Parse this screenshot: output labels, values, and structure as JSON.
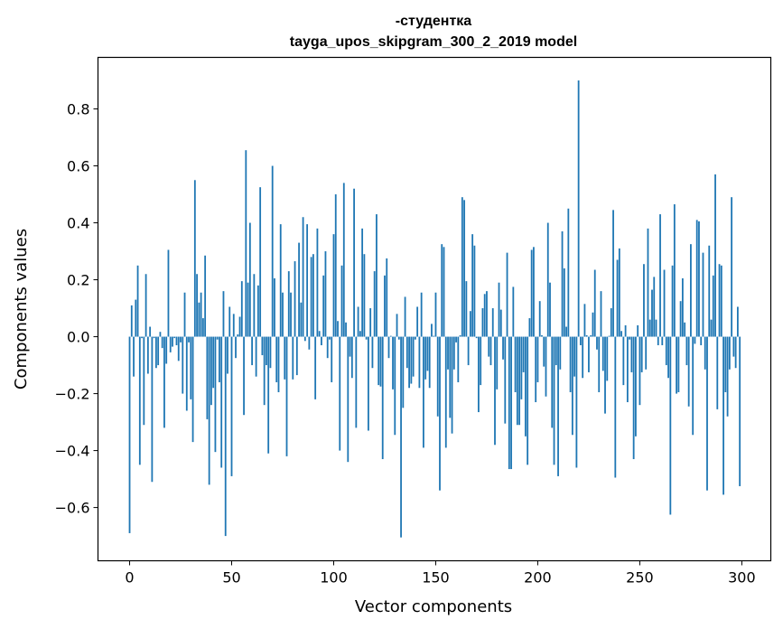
{
  "chart_data": {
    "type": "bar",
    "title": [
      "-студентка",
      "tayga_upos_skipgram_300_2_2019 model"
    ],
    "xlabel": "Vector components",
    "ylabel": "Components values",
    "xlim": [
      -15.5,
      314.2
    ],
    "ylim": [
      -0.787,
      0.981
    ],
    "xticks": [
      0,
      50,
      100,
      150,
      200,
      250,
      300
    ],
    "xtick_labels": [
      "0",
      "50",
      "100",
      "150",
      "200",
      "250",
      "300"
    ],
    "yticks": [
      -0.6,
      -0.4,
      -0.2,
      0.0,
      0.2,
      0.4,
      0.6,
      0.8
    ],
    "ytick_labels": [
      "−0.6",
      "−0.4",
      "−0.2",
      "0.0",
      "0.2",
      "0.4",
      "0.6",
      "0.8"
    ],
    "grid": false,
    "color": "#1f77b4",
    "values": [
      -0.69,
      0.11,
      -0.14,
      0.13,
      0.25,
      -0.45,
      -0.005,
      -0.31,
      0.22,
      -0.13,
      0.035,
      -0.51,
      -0.005,
      -0.11,
      -0.1,
      0.017,
      -0.04,
      -0.32,
      -0.095,
      0.305,
      -0.055,
      -0.035,
      -0.005,
      -0.03,
      -0.085,
      -0.02,
      -0.2,
      0.155,
      -0.26,
      -0.02,
      -0.22,
      -0.37,
      0.55,
      0.22,
      0.12,
      0.155,
      0.065,
      0.285,
      -0.29,
      -0.52,
      -0.24,
      -0.18,
      -0.405,
      -0.01,
      -0.16,
      -0.46,
      0.16,
      -0.7,
      -0.13,
      0.105,
      -0.49,
      0.08,
      -0.075,
      0.008,
      0.07,
      0.195,
      -0.275,
      0.655,
      0.19,
      0.4,
      -0.1,
      0.22,
      -0.14,
      0.18,
      0.525,
      -0.065,
      -0.24,
      -0.1,
      -0.41,
      -0.11,
      0.6,
      0.205,
      -0.16,
      -0.195,
      0.395,
      0.155,
      -0.15,
      -0.42,
      0.23,
      0.155,
      -0.15,
      0.265,
      -0.135,
      0.33,
      0.12,
      0.42,
      -0.015,
      0.395,
      -0.045,
      0.28,
      0.29,
      -0.22,
      0.38,
      0.02,
      -0.03,
      0.215,
      0.3,
      -0.075,
      -0.01,
      -0.16,
      0.36,
      0.5,
      0.055,
      -0.4,
      0.25,
      0.54,
      0.05,
      -0.44,
      -0.07,
      -0.145,
      0.52,
      -0.32,
      0.105,
      0.02,
      0.38,
      0.29,
      -0.01,
      -0.33,
      0.1,
      -0.11,
      0.23,
      0.43,
      -0.17,
      -0.175,
      -0.43,
      0.215,
      0.275,
      -0.075,
      0.003,
      -0.185,
      -0.345,
      0.08,
      -0.01,
      -0.705,
      -0.25,
      0.14,
      -0.11,
      -0.18,
      -0.165,
      -0.14,
      -0.01,
      0.105,
      -0.18,
      0.155,
      -0.39,
      -0.15,
      -0.12,
      -0.18,
      0.045,
      0.003,
      0.155,
      -0.28,
      -0.54,
      0.325,
      0.315,
      -0.39,
      -0.115,
      -0.285,
      -0.34,
      -0.115,
      -0.02,
      -0.16,
      0.005,
      0.49,
      0.48,
      0.195,
      -0.1,
      0.09,
      0.36,
      0.32,
      -0.005,
      -0.265,
      -0.17,
      0.1,
      0.15,
      0.16,
      -0.07,
      -0.1,
      0.1,
      -0.38,
      -0.185,
      0.19,
      0.095,
      -0.08,
      -0.305,
      0.295,
      -0.465,
      -0.465,
      0.175,
      -0.195,
      -0.31,
      -0.31,
      -0.22,
      -0.125,
      -0.35,
      -0.45,
      0.065,
      0.305,
      0.315,
      -0.23,
      -0.16,
      0.125,
      0.005,
      -0.105,
      -0.21,
      0.4,
      0.19,
      -0.32,
      -0.45,
      -0.1,
      -0.49,
      -0.115,
      0.37,
      0.24,
      0.035,
      0.45,
      -0.195,
      -0.345,
      -0.14,
      -0.46,
      0.9,
      -0.03,
      -0.145,
      0.115,
      0.005,
      -0.125,
      0.005,
      0.085,
      0.235,
      -0.045,
      -0.195,
      0.16,
      -0.12,
      -0.27,
      -0.155,
      0.003,
      0.1,
      0.445,
      -0.495,
      0.27,
      0.31,
      0.02,
      -0.17,
      0.04,
      -0.23,
      -0.01,
      -0.125,
      -0.43,
      -0.35,
      0.04,
      -0.24,
      -0.125,
      0.255,
      -0.115,
      0.38,
      0.06,
      0.165,
      0.21,
      0.06,
      -0.03,
      0.43,
      -0.03,
      0.235,
      -0.1,
      -0.145,
      -0.625,
      0.25,
      0.465,
      -0.2,
      -0.195,
      0.125,
      0.205,
      0.05,
      -0.1,
      -0.245,
      0.325,
      -0.345,
      -0.025,
      0.41,
      0.405,
      -0.03,
      0.295,
      -0.115,
      -0.54,
      0.32,
      0.06,
      0.215,
      0.57,
      -0.255,
      0.255,
      0.25,
      -0.555,
      -0.195,
      -0.28,
      -0.115,
      0.49,
      -0.07,
      -0.11,
      0.105,
      -0.525
    ]
  }
}
